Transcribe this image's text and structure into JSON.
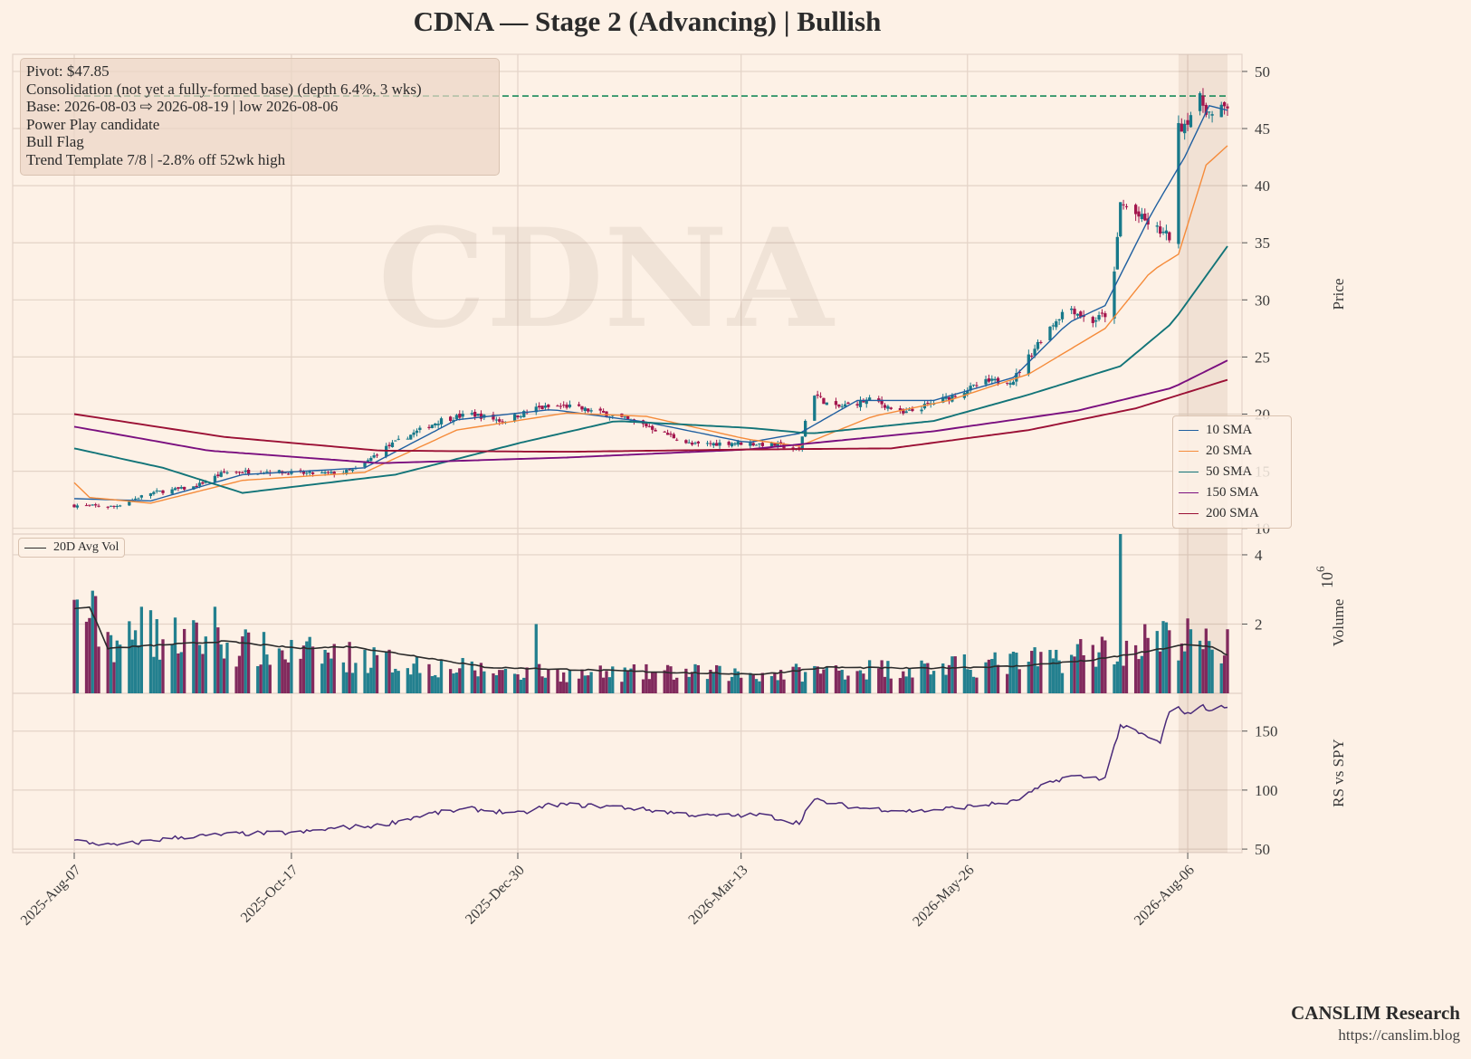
{
  "title": "CDNA  —  Stage 2 (Advancing)  |  Bullish",
  "annotation": {
    "line1": "Pivot: $47.85",
    "line2": "Consolidation (not yet a fully-formed base)  (depth 6.4%, 3 wks)",
    "line3": "Base: 2026-08-03 ⇨ 2026-08-19  |  low 2026-08-06",
    "line4": "Power Play candidate",
    "line5": "Bull Flag",
    "line6": "Trend Template 7/8  |  -2.8% off 52wk high"
  },
  "watermark": "CDNA",
  "footer": {
    "brand": "CANSLIM Research",
    "url": "https://canslim.blog"
  },
  "colors": {
    "background": "#fdf1e6",
    "up": "#17798a",
    "down": "#a3154d",
    "sma10": "#1f5fa0",
    "sma20": "#f58b3a",
    "sma50": "#127478",
    "sma150": "#7a0f7f",
    "sma200": "#9b1035",
    "avgvol": "#2b2b2b",
    "rs": "#4a2a7a",
    "pivot": "#1a8a5a",
    "grid": "#e3d3c7"
  },
  "chart_data": [
    {
      "type": "candlestick",
      "ylabel": "Price",
      "ylim": [
        9.5,
        51.5
      ],
      "yticks": [
        10,
        15,
        20,
        25,
        30,
        35,
        40,
        45,
        50
      ],
      "x_range": [
        "2025-08-07",
        "2026-08-19"
      ],
      "xticks": [
        "2025-Aug-07",
        "2025-Oct-17",
        "2025-Dec-30",
        "2026-Mar-13",
        "2026-May-26",
        "2026-Aug-06"
      ],
      "pivot_line": 47.85,
      "base_shade": [
        "2026-08-03",
        "2026-08-19"
      ],
      "price_anchors": [
        [
          "2025-08-07",
          12.0
        ],
        [
          "2025-08-20",
          11.9
        ],
        [
          "2025-09-01",
          13.1
        ],
        [
          "2025-09-15",
          13.6
        ],
        [
          "2025-09-25",
          14.9
        ],
        [
          "2025-10-10",
          15.0
        ],
        [
          "2025-10-20",
          14.8
        ],
        [
          "2025-11-01",
          14.8
        ],
        [
          "2025-11-08",
          15.2
        ],
        [
          "2025-11-15",
          16.8
        ],
        [
          "2025-11-25",
          18.2
        ],
        [
          "2025-12-05",
          19.5
        ],
        [
          "2025-12-15",
          20.0
        ],
        [
          "2025-12-25",
          19.4
        ],
        [
          "2026-01-05",
          20.5
        ],
        [
          "2026-01-15",
          20.7
        ],
        [
          "2026-01-28",
          20.0
        ],
        [
          "2026-02-10",
          19.0
        ],
        [
          "2026-02-25",
          17.3
        ],
        [
          "2026-03-10",
          17.5
        ],
        [
          "2026-03-25",
          17.3
        ],
        [
          "2026-04-01",
          16.8
        ],
        [
          "2026-04-05",
          22.0
        ],
        [
          "2026-04-12",
          20.5
        ],
        [
          "2026-04-25",
          21.3
        ],
        [
          "2026-05-05",
          20.0
        ],
        [
          "2026-05-20",
          21.5
        ],
        [
          "2026-06-01",
          22.8
        ],
        [
          "2026-06-10",
          23.0
        ],
        [
          "2026-06-20",
          27.0
        ],
        [
          "2026-06-28",
          29.5
        ],
        [
          "2026-07-05",
          28.0
        ],
        [
          "2026-07-12",
          29.0
        ],
        [
          "2026-07-15",
          38.5
        ],
        [
          "2026-07-25",
          36.5
        ],
        [
          "2026-07-31",
          35.5
        ],
        [
          "2026-08-01",
          44.5
        ],
        [
          "2026-08-05",
          45.5
        ],
        [
          "2026-08-10",
          47.5
        ],
        [
          "2026-08-14",
          46.0
        ],
        [
          "2026-08-19",
          47.0
        ]
      ],
      "series": [
        {
          "name": "10 SMA",
          "anchors": [
            [
              "2025-08-07",
              12.6
            ],
            [
              "2025-09-01",
              12.4
            ],
            [
              "2025-10-01",
              14.7
            ],
            [
              "2025-11-10",
              15.3
            ],
            [
              "2025-12-10",
              19.5
            ],
            [
              "2026-01-10",
              20.4
            ],
            [
              "2026-02-10",
              19.3
            ],
            [
              "2026-03-15",
              17.5
            ],
            [
              "2026-04-01",
              18.3
            ],
            [
              "2026-04-20",
              21.2
            ],
            [
              "2026-05-15",
              21.2
            ],
            [
              "2026-06-10",
              23.2
            ],
            [
              "2026-06-28",
              28.0
            ],
            [
              "2026-07-10",
              29.5
            ],
            [
              "2026-07-25",
              37.5
            ],
            [
              "2026-08-05",
              42.5
            ],
            [
              "2026-08-13",
              47.0
            ],
            [
              "2026-08-19",
              46.6
            ]
          ]
        },
        {
          "name": "20 SMA",
          "anchors": [
            [
              "2025-08-07",
              14.0
            ],
            [
              "2025-08-12",
              12.7
            ],
            [
              "2025-09-01",
              12.2
            ],
            [
              "2025-10-01",
              14.2
            ],
            [
              "2025-11-10",
              14.9
            ],
            [
              "2025-12-10",
              18.6
            ],
            [
              "2026-01-15",
              20.1
            ],
            [
              "2026-02-10",
              19.8
            ],
            [
              "2026-03-15",
              17.8
            ],
            [
              "2026-04-01",
              17.2
            ],
            [
              "2026-04-25",
              19.8
            ],
            [
              "2026-05-20",
              21.2
            ],
            [
              "2026-06-15",
              23.5
            ],
            [
              "2026-07-10",
              27.5
            ],
            [
              "2026-07-25",
              32.5
            ],
            [
              "2026-08-03",
              34.0
            ],
            [
              "2026-08-12",
              41.8
            ],
            [
              "2026-08-19",
              43.5
            ]
          ]
        },
        {
          "name": "50 SMA",
          "anchors": [
            [
              "2025-08-07",
              17.0
            ],
            [
              "2025-09-05",
              15.3
            ],
            [
              "2025-10-01",
              13.1
            ],
            [
              "2025-11-20",
              14.7
            ],
            [
              "2025-12-31",
              17.5
            ],
            [
              "2026-01-31",
              19.4
            ],
            [
              "2026-03-15",
              18.8
            ],
            [
              "2026-04-05",
              18.3
            ],
            [
              "2026-05-15",
              19.4
            ],
            [
              "2026-06-15",
              21.7
            ],
            [
              "2026-07-15",
              24.2
            ],
            [
              "2026-08-01",
              28.0
            ],
            [
              "2026-08-19",
              34.7
            ]
          ]
        },
        {
          "name": "150 SMA",
          "anchors": [
            [
              "2025-08-07",
              18.9
            ],
            [
              "2025-09-20",
              16.8
            ],
            [
              "2025-11-15",
              15.7
            ],
            [
              "2026-01-15",
              16.2
            ],
            [
              "2026-03-15",
              16.9
            ],
            [
              "2026-05-15",
              18.5
            ],
            [
              "2026-07-01",
              20.3
            ],
            [
              "2026-08-01",
              22.3
            ],
            [
              "2026-08-19",
              24.7
            ]
          ]
        },
        {
          "name": "200 SMA",
          "anchors": [
            [
              "2025-08-07",
              20.0
            ],
            [
              "2025-09-25",
              18.0
            ],
            [
              "2025-11-15",
              16.8
            ],
            [
              "2026-01-15",
              16.7
            ],
            [
              "2026-03-15",
              16.9
            ],
            [
              "2026-05-01",
              17.0
            ],
            [
              "2026-06-15",
              18.6
            ],
            [
              "2026-07-20",
              20.5
            ],
            [
              "2026-08-19",
              23.0
            ]
          ]
        }
      ]
    },
    {
      "type": "bar",
      "ylabel": "Volume",
      "yscale_label": "10^6",
      "ylim": [
        0,
        4.6
      ],
      "yticks": [
        2,
        4
      ],
      "volume_anchors": [
        [
          "2025-08-07",
          2.7
        ],
        [
          "2025-08-20",
          1.5
        ],
        [
          "2025-09-10",
          1.6
        ],
        [
          "2025-10-10",
          1.2
        ],
        [
          "2025-11-01",
          1.1
        ],
        [
          "2025-11-20",
          0.9
        ],
        [
          "2025-12-20",
          0.65
        ],
        [
          "2026-01-20",
          0.55
        ],
        [
          "2026-02-20",
          0.6
        ],
        [
          "2026-03-20",
          0.55
        ],
        [
          "2026-04-20",
          0.7
        ],
        [
          "2026-05-20",
          0.75
        ],
        [
          "2026-06-20",
          0.95
        ],
        [
          "2026-07-15",
          1.4
        ],
        [
          "2026-08-05",
          1.6
        ],
        [
          "2026-08-19",
          1.1
        ]
      ],
      "volume_spikes": [
        [
          "2025-08-07",
          2.7
        ],
        [
          "2025-08-29",
          2.5
        ],
        [
          "2025-09-01",
          2.4
        ],
        [
          "2025-09-22",
          2.5
        ],
        [
          "2025-11-01",
          3.7
        ],
        [
          "2026-01-05",
          2.0
        ],
        [
          "2026-04-05",
          3.0
        ],
        [
          "2026-06-27",
          2.75
        ],
        [
          "2026-07-15",
          4.6
        ],
        [
          "2026-08-01",
          2.75
        ],
        [
          "2026-08-02",
          2.9
        ],
        [
          "2026-08-19",
          1.85
        ]
      ],
      "series": [
        {
          "name": "20D Avg Vol",
          "anchors": [
            [
              "2025-08-07",
              2.45
            ],
            [
              "2025-08-12",
              2.5
            ],
            [
              "2025-08-18",
              1.3
            ],
            [
              "2025-09-05",
              1.4
            ],
            [
              "2025-09-25",
              1.5
            ],
            [
              "2025-10-20",
              1.3
            ],
            [
              "2025-11-05",
              1.35
            ],
            [
              "2025-11-25",
              1.1
            ],
            [
              "2025-12-20",
              0.75
            ],
            [
              "2026-01-20",
              0.68
            ],
            [
              "2026-02-20",
              0.6
            ],
            [
              "2026-03-20",
              0.55
            ],
            [
              "2026-04-10",
              0.75
            ],
            [
              "2026-05-10",
              0.72
            ],
            [
              "2026-06-10",
              0.78
            ],
            [
              "2026-07-05",
              0.95
            ],
            [
              "2026-07-20",
              1.15
            ],
            [
              "2026-08-05",
              1.4
            ],
            [
              "2026-08-14",
              1.35
            ],
            [
              "2026-08-19",
              1.1
            ]
          ]
        }
      ]
    },
    {
      "type": "line",
      "ylabel": "RS vs SPY",
      "ylim": [
        47,
        182
      ],
      "yticks": [
        50,
        100,
        150
      ],
      "series": [
        {
          "name": "RS vs SPY",
          "anchors": [
            [
              "2025-08-07",
              57
            ],
            [
              "2025-08-20",
              53
            ],
            [
              "2025-09-10",
              60
            ],
            [
              "2025-09-30",
              63
            ],
            [
              "2025-10-20",
              64
            ],
            [
              "2025-11-01",
              68
            ],
            [
              "2025-11-15",
              70
            ],
            [
              "2025-12-01",
              80
            ],
            [
              "2025-12-15",
              84
            ],
            [
              "2025-12-31",
              80
            ],
            [
              "2026-01-10",
              88
            ],
            [
              "2026-01-31",
              86
            ],
            [
              "2026-02-15",
              82
            ],
            [
              "2026-03-01",
              78
            ],
            [
              "2026-03-20",
              79
            ],
            [
              "2026-04-01",
              72
            ],
            [
              "2026-04-05",
              92
            ],
            [
              "2026-04-20",
              85
            ],
            [
              "2026-05-10",
              82
            ],
            [
              "2026-05-26",
              86
            ],
            [
              "2026-06-10",
              90
            ],
            [
              "2026-06-20",
              104
            ],
            [
              "2026-06-28",
              112
            ],
            [
              "2026-07-10",
              110
            ],
            [
              "2026-07-15",
              155
            ],
            [
              "2026-07-28",
              140
            ],
            [
              "2026-08-01",
              176
            ],
            [
              "2026-08-05",
              163
            ],
            [
              "2026-08-10",
              172
            ],
            [
              "2026-08-14",
              167
            ],
            [
              "2026-08-19",
              172
            ]
          ]
        }
      ]
    }
  ]
}
